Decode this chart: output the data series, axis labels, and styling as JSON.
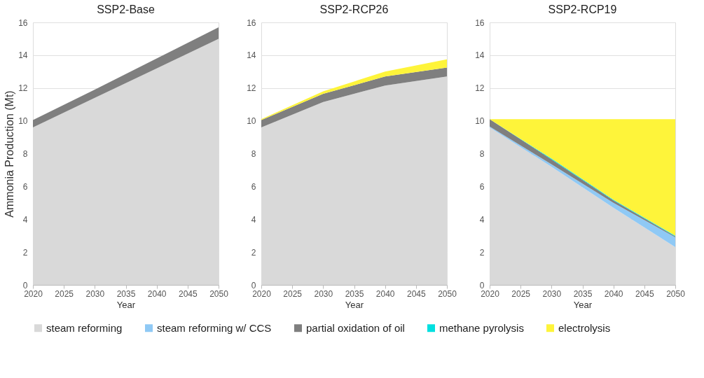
{
  "chart_data": [
    {
      "type": "area",
      "stacked": true,
      "title": "SSP2-Base",
      "xlabel": "Year",
      "ylabel": "Ammonia Production (Mt)",
      "x": [
        2020,
        2030,
        2040,
        2050
      ],
      "xlim": [
        2020,
        2050
      ],
      "xticks": [
        2020,
        2025,
        2030,
        2035,
        2040,
        2045,
        2050
      ],
      "ylim": [
        0,
        16
      ],
      "yticks": [
        0,
        2,
        4,
        6,
        8,
        10,
        12,
        14,
        16
      ],
      "grid": "y",
      "legend": "bottom",
      "series": [
        {
          "name": "steam reforming",
          "color": "#d9d9d9",
          "values": [
            9.6,
            11.4,
            13.2,
            15.0
          ]
        },
        {
          "name": "partial oxidation of oil",
          "color": "#7f7f7f",
          "values": [
            0.45,
            0.5,
            0.6,
            0.7
          ]
        }
      ]
    },
    {
      "type": "area",
      "stacked": true,
      "title": "SSP2-RCP26",
      "xlabel": "Year",
      "x": [
        2020,
        2030,
        2040,
        2050
      ],
      "xlim": [
        2020,
        2050
      ],
      "xticks": [
        2020,
        2025,
        2030,
        2035,
        2040,
        2045,
        2050
      ],
      "ylim": [
        0,
        16
      ],
      "yticks": [
        0,
        2,
        4,
        6,
        8,
        10,
        12,
        14,
        16
      ],
      "grid": "y",
      "legend": "bottom",
      "series": [
        {
          "name": "steam reforming",
          "color": "#d9d9d9",
          "values": [
            9.6,
            11.15,
            12.15,
            12.7
          ]
        },
        {
          "name": "partial oxidation of oil",
          "color": "#7f7f7f",
          "values": [
            0.45,
            0.5,
            0.55,
            0.55
          ]
        },
        {
          "name": "electrolysis",
          "color": "#fef43a",
          "values": [
            0.05,
            0.15,
            0.3,
            0.5
          ]
        }
      ]
    },
    {
      "type": "area",
      "stacked": true,
      "title": "SSP2-RCP19",
      "xlabel": "Year",
      "x": [
        2020,
        2030,
        2040,
        2050
      ],
      "xlim": [
        2020,
        2050
      ],
      "xticks": [
        2020,
        2025,
        2030,
        2035,
        2040,
        2045,
        2050
      ],
      "ylim": [
        0,
        16
      ],
      "yticks": [
        0,
        2,
        4,
        6,
        8,
        10,
        12,
        14,
        16
      ],
      "grid": "y",
      "legend": "bottom",
      "series": [
        {
          "name": "steam reforming",
          "color": "#d9d9d9",
          "values": [
            9.6,
            7.2,
            4.7,
            2.3
          ]
        },
        {
          "name": "steam reforming w/ CCS",
          "color": "#8fc9f5",
          "values": [
            0.05,
            0.15,
            0.3,
            0.6
          ]
        },
        {
          "name": "partial oxidation of oil",
          "color": "#7f7f7f",
          "values": [
            0.45,
            0.3,
            0.15,
            0.05
          ]
        },
        {
          "name": "methane pyrolysis",
          "color": "#00e0e0",
          "values": [
            0,
            0.05,
            0.05,
            0.05
          ]
        },
        {
          "name": "electrolysis",
          "color": "#fef43a",
          "values": [
            0,
            2.4,
            4.9,
            7.1
          ]
        }
      ]
    }
  ]
}
